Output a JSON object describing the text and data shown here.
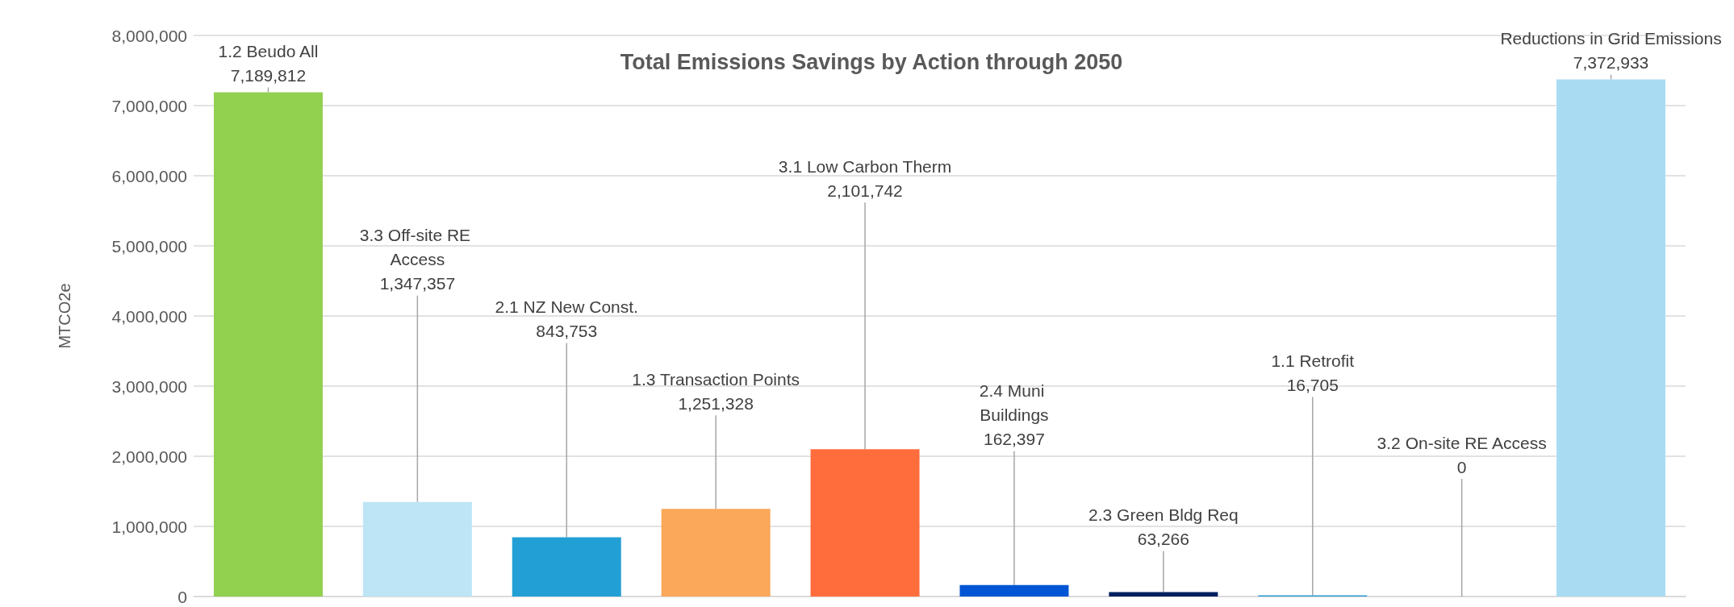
{
  "chart_data": {
    "type": "bar",
    "title": "Total Emissions Savings by Action through 2050",
    "ylabel": "MTCO2e",
    "categories": [
      "1.2 Beudo All",
      "3.3 Off-site RE Access",
      "2.1 NZ New Const.",
      "1.3 Transaction Points",
      "3.1 Low Carbon Therm",
      "2.4 Muni Buildings",
      "2.3 Green Bldg Req",
      "1.1 Retrofit",
      "3.2 On-site RE Access",
      "Reductions in Grid Emissions"
    ],
    "values": [
      7189812,
      1347357,
      843753,
      1251328,
      2101742,
      162397,
      63266,
      16705,
      0,
      7372933
    ],
    "value_labels": [
      "7,189,812",
      "1,347,357",
      "843,753",
      "1,251,328",
      "2,101,742",
      "162,397",
      "63,266",
      "16,705",
      "0",
      "7,372,933"
    ],
    "colors": [
      "#92d050",
      "#bde5f5",
      "#22a0d6",
      "#fba85a",
      "#ff6d3d",
      "#0055d4",
      "#002060",
      "#2e9bd6",
      "#bde5f5",
      "#a9dcf3"
    ],
    "ylim": [
      0,
      8000000
    ],
    "yticks": [
      0,
      {
        "value": 1000000,
        "label": "1,000,000"
      },
      {
        "value": 2000000,
        "label": "2,000,000"
      },
      {
        "value": 3000000,
        "label": "3,000,000"
      },
      {
        "value": 4000000,
        "label": "4,000,000"
      },
      {
        "value": 5000000,
        "label": "5,000,000"
      },
      {
        "value": 6000000,
        "label": "6,000,000"
      },
      {
        "value": 7000000,
        "label": "7,000,000"
      },
      {
        "value": 8000000,
        "label": "8,000,000"
      }
    ],
    "grid": "y",
    "tick_labels": "y"
  }
}
